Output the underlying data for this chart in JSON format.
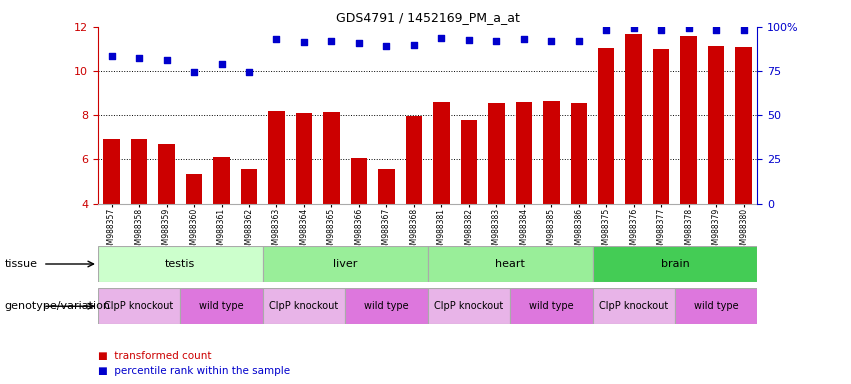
{
  "title": "GDS4791 / 1452169_PM_a_at",
  "samples": [
    "GSM988357",
    "GSM988358",
    "GSM988359",
    "GSM988360",
    "GSM988361",
    "GSM988362",
    "GSM988363",
    "GSM988364",
    "GSM988365",
    "GSM988366",
    "GSM988367",
    "GSM988368",
    "GSM988381",
    "GSM988382",
    "GSM988383",
    "GSM988384",
    "GSM988385",
    "GSM988386",
    "GSM988375",
    "GSM988376",
    "GSM988377",
    "GSM988378",
    "GSM988379",
    "GSM988380"
  ],
  "bar_values": [
    6.9,
    6.9,
    6.7,
    5.35,
    6.1,
    5.55,
    8.2,
    8.1,
    8.15,
    6.05,
    5.55,
    7.95,
    8.6,
    7.8,
    8.55,
    8.6,
    8.65,
    8.55,
    11.05,
    11.7,
    11.0,
    11.6,
    11.15,
    11.1
  ],
  "blue_dot_values": [
    10.7,
    10.6,
    10.5,
    9.95,
    10.3,
    9.95,
    11.45,
    11.3,
    11.35,
    11.25,
    11.15,
    11.2,
    11.5,
    11.4,
    11.35,
    11.45,
    11.35,
    11.35,
    11.85,
    11.95,
    11.85,
    11.95,
    11.85,
    11.85
  ],
  "ylim": [
    4,
    12
  ],
  "yticks": [
    4,
    6,
    8,
    10,
    12
  ],
  "dotted_lines": [
    6,
    8,
    10
  ],
  "percentile_ticks": [
    0,
    25,
    50,
    75,
    100
  ],
  "bar_color": "#cc0000",
  "dot_color": "#0000cc",
  "tissue_groups": [
    {
      "label": "testis",
      "start": 0,
      "end": 6,
      "color": "#ccffcc"
    },
    {
      "label": "liver",
      "start": 6,
      "end": 12,
      "color": "#99ee99"
    },
    {
      "label": "heart",
      "start": 12,
      "end": 18,
      "color": "#99ee99"
    },
    {
      "label": "brain",
      "start": 18,
      "end": 24,
      "color": "#44cc55"
    }
  ],
  "genotype_groups": [
    {
      "label": "ClpP knockout",
      "start": 0,
      "end": 3,
      "color": "#e8b4e8"
    },
    {
      "label": "wild type",
      "start": 3,
      "end": 6,
      "color": "#dd77dd"
    },
    {
      "label": "ClpP knockout",
      "start": 6,
      "end": 9,
      "color": "#e8b4e8"
    },
    {
      "label": "wild type",
      "start": 9,
      "end": 12,
      "color": "#dd77dd"
    },
    {
      "label": "ClpP knockout",
      "start": 12,
      "end": 15,
      "color": "#e8b4e8"
    },
    {
      "label": "wild type",
      "start": 15,
      "end": 18,
      "color": "#dd77dd"
    },
    {
      "label": "ClpP knockout",
      "start": 18,
      "end": 21,
      "color": "#e8b4e8"
    },
    {
      "label": "wild type",
      "start": 21,
      "end": 24,
      "color": "#dd77dd"
    }
  ],
  "tissue_label": "tissue",
  "geno_label": "genotype/variation",
  "legend": [
    {
      "label": "transformed count",
      "color": "#cc0000"
    },
    {
      "label": "percentile rank within the sample",
      "color": "#0000cc"
    }
  ],
  "fig_width": 8.51,
  "fig_height": 3.84,
  "dpi": 100
}
